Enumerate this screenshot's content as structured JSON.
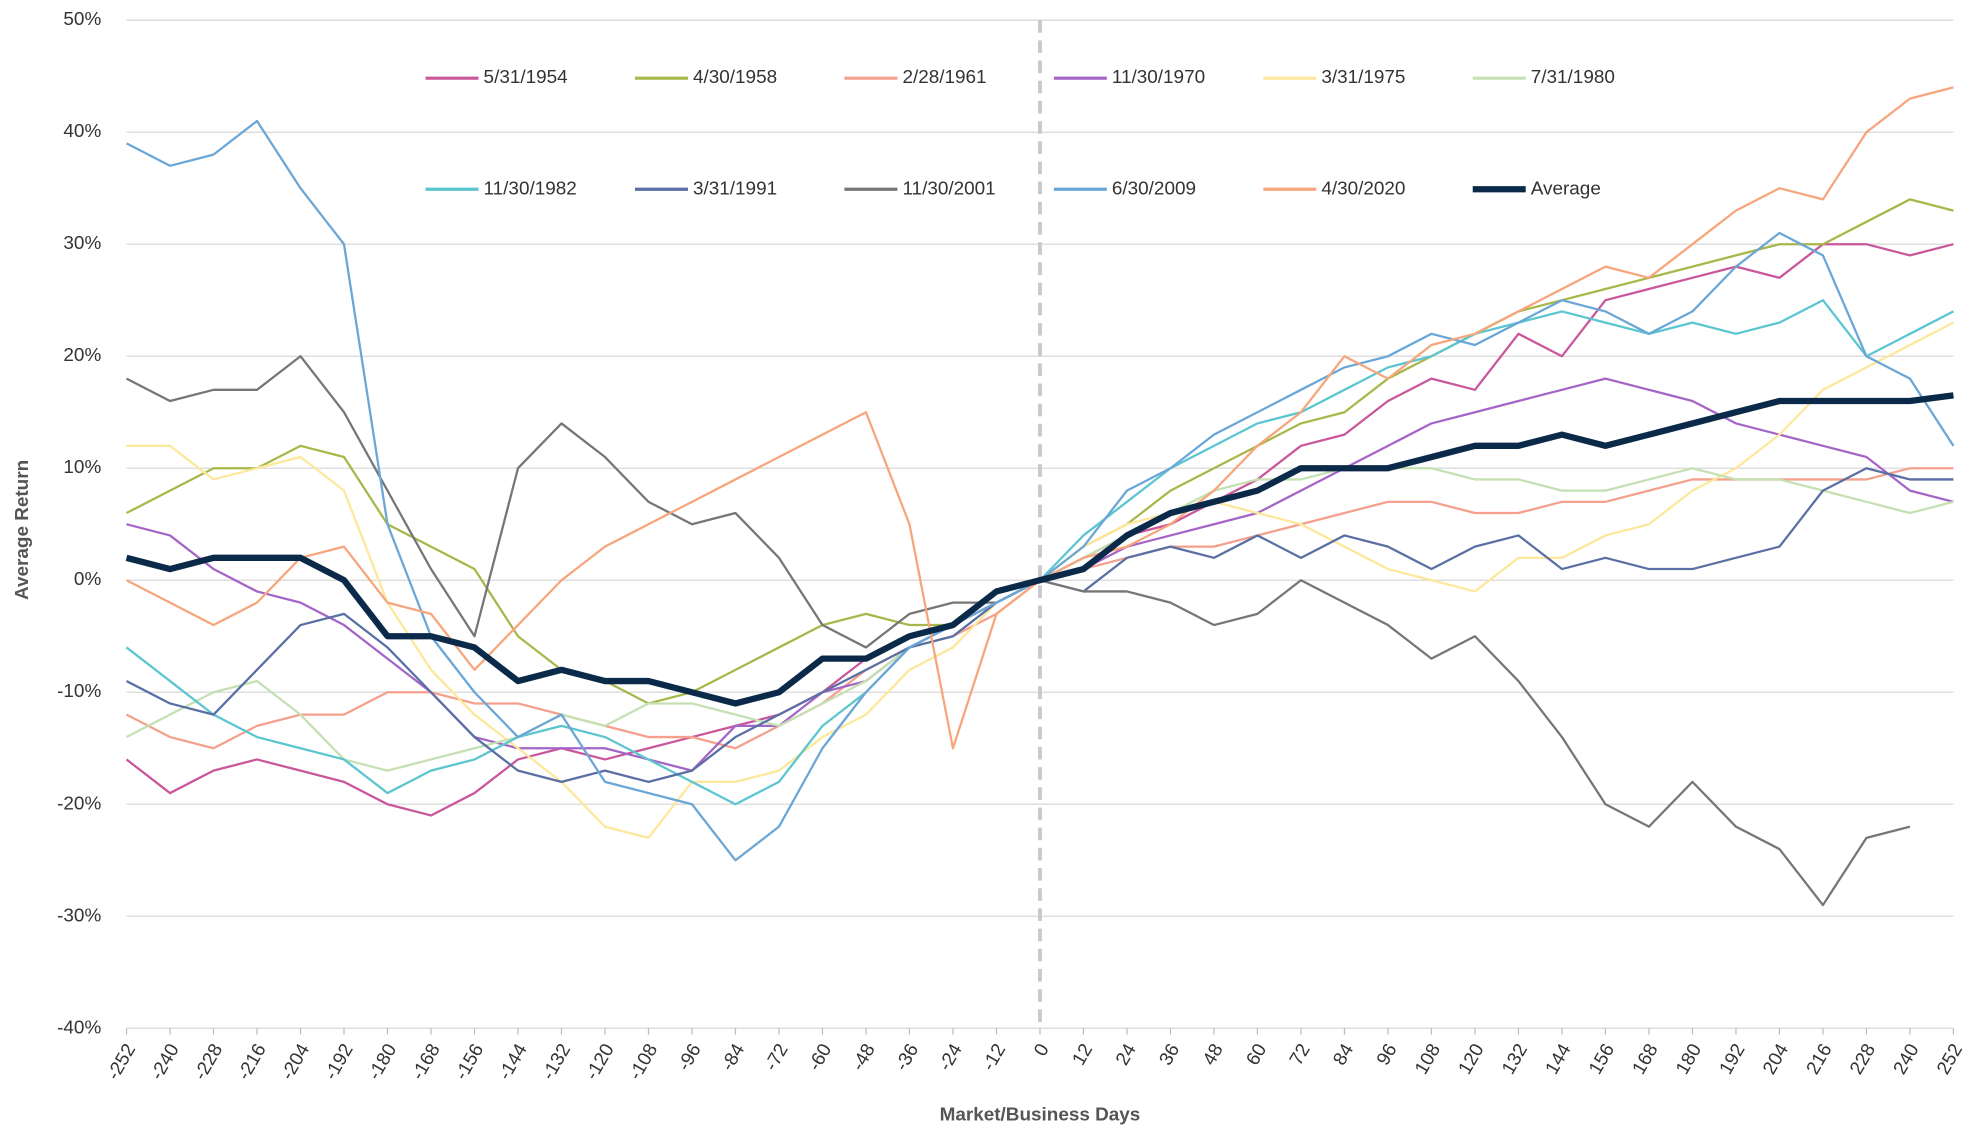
{
  "chart_data": {
    "type": "line",
    "y_label": "Average Return",
    "x_label": "Market/Business Days",
    "xlim": [
      -252,
      252
    ],
    "ylim": [
      -40,
      50
    ],
    "xticks": [
      -252,
      -240,
      -228,
      -216,
      -204,
      -192,
      -180,
      -168,
      -156,
      -144,
      -132,
      -120,
      -108,
      -96,
      -84,
      -72,
      -60,
      -48,
      -36,
      -24,
      -12,
      0,
      12,
      24,
      36,
      48,
      60,
      72,
      84,
      96,
      108,
      120,
      132,
      144,
      156,
      168,
      180,
      192,
      204,
      216,
      228,
      240,
      252
    ],
    "yticks": [
      {
        "value": -40,
        "label": "-40%"
      },
      {
        "value": -30,
        "label": "-30%"
      },
      {
        "value": -20,
        "label": "-20%"
      },
      {
        "value": -10,
        "label": "-10%"
      },
      {
        "value": 0,
        "label": "0%"
      },
      {
        "value": 10,
        "label": "10%"
      },
      {
        "value": 20,
        "label": "20%"
      },
      {
        "value": 30,
        "label": "30%"
      },
      {
        "value": 40,
        "label": "40%"
      },
      {
        "value": 50,
        "label": "50%"
      }
    ],
    "grid": true,
    "x": [
      -252,
      -240,
      -228,
      -216,
      -204,
      -192,
      -180,
      -168,
      -156,
      -144,
      -132,
      -120,
      -108,
      -96,
      -84,
      -72,
      -60,
      -48,
      -36,
      -24,
      -12,
      0,
      12,
      24,
      36,
      48,
      60,
      72,
      84,
      96,
      108,
      120,
      132,
      144,
      156,
      168,
      180,
      192,
      204,
      216,
      228,
      240,
      252
    ],
    "series": [
      {
        "name": "5/31/1954",
        "color": "#c9579b",
        "values": [
          -16,
          -19,
          -17,
          -16,
          -17,
          -18,
          -20,
          -21,
          -19,
          -16,
          -15,
          -16,
          -15,
          -14,
          -13,
          -12,
          -10,
          -7,
          -5,
          -4,
          -2,
          0,
          2,
          4,
          5,
          7,
          9,
          12,
          13,
          16,
          18,
          17,
          22,
          20,
          25,
          26,
          27,
          28,
          27,
          30,
          30,
          29,
          30
        ]
      },
      {
        "name": "4/30/1958",
        "color": "#a8b74a",
        "values": [
          6,
          8,
          10,
          10,
          12,
          11,
          5,
          3,
          1,
          -5,
          -8,
          -9,
          -11,
          -10,
          -8,
          -6,
          -4,
          -3,
          -4,
          -4,
          -1,
          0,
          3,
          5,
          8,
          10,
          12,
          14,
          15,
          18,
          20,
          22,
          24,
          25,
          26,
          27,
          28,
          29,
          30,
          30,
          32,
          34,
          33
        ]
      },
      {
        "name": "2/28/1961",
        "color": "#f4a08c",
        "values": [
          -12,
          -14,
          -15,
          -13,
          -12,
          -12,
          -10,
          -10,
          -11,
          -11,
          -12,
          -13,
          -14,
          -14,
          -15,
          -13,
          -11,
          -8,
          -6,
          -5,
          -3,
          0,
          1,
          2,
          3,
          3,
          4,
          5,
          6,
          7,
          7,
          6,
          6,
          7,
          7,
          8,
          9,
          9,
          9,
          9,
          9,
          10,
          10
        ]
      },
      {
        "name": "11/30/1970",
        "color": "#a565c7",
        "values": [
          5,
          4,
          1,
          -1,
          -2,
          -4,
          -7,
          -10,
          -14,
          -15,
          -15,
          -15,
          -16,
          -17,
          -13,
          -13,
          -10,
          -9,
          -6,
          -4,
          -2,
          0,
          1,
          3,
          4,
          5,
          6,
          8,
          10,
          12,
          14,
          15,
          16,
          17,
          18,
          17,
          16,
          14,
          13,
          12,
          11,
          8,
          7
        ]
      },
      {
        "name": "3/31/1975",
        "color": "#fde79a",
        "values": [
          12,
          12,
          9,
          10,
          11,
          8,
          -2,
          -8,
          -12,
          -15,
          -18,
          -22,
          -23,
          -18,
          -18,
          -17,
          -14,
          -12,
          -8,
          -6,
          -2,
          0,
          3,
          5,
          6,
          7,
          6,
          5,
          3,
          1,
          0,
          -1,
          2,
          2,
          4,
          5,
          8,
          10,
          13,
          17,
          19,
          21,
          23
        ]
      },
      {
        "name": "7/31/1980",
        "color": "#c5e0b3",
        "values": [
          -14,
          -12,
          -10,
          -9,
          -12,
          -16,
          -17,
          -16,
          -15,
          -14,
          -12,
          -13,
          -11,
          -11,
          -12,
          -13,
          -11,
          -9,
          -6,
          -5,
          -2,
          0,
          2,
          4,
          6,
          8,
          9,
          9,
          10,
          10,
          10,
          9,
          9,
          8,
          8,
          9,
          10,
          9,
          9,
          8,
          7,
          6,
          7
        ]
      },
      {
        "name": "11/30/1982",
        "color": "#5bc5d0",
        "values": [
          -6,
          -9,
          -12,
          -14,
          -15,
          -16,
          -19,
          -17,
          -16,
          -14,
          -13,
          -14,
          -16,
          -18,
          -20,
          -18,
          -13,
          -10,
          -6,
          -4,
          -2,
          0,
          4,
          7,
          10,
          12,
          14,
          15,
          17,
          19,
          20,
          22,
          23,
          24,
          23,
          22,
          23,
          22,
          23,
          25,
          20,
          22,
          24
        ]
      },
      {
        "name": "3/31/1991",
        "color": "#5a6fa3",
        "values": [
          -9,
          -11,
          -12,
          -8,
          -4,
          -3,
          -6,
          -10,
          -14,
          -17,
          -18,
          -17,
          -18,
          -17,
          -14,
          -12,
          -10,
          -8,
          -6,
          -5,
          -2,
          0,
          -1,
          2,
          3,
          2,
          4,
          2,
          4,
          3,
          1,
          3,
          4,
          1,
          2,
          1,
          1,
          2,
          3,
          8,
          10,
          9,
          9
        ]
      },
      {
        "name": "11/30/2001",
        "color": "#767676",
        "values": [
          18,
          16,
          17,
          17,
          20,
          15,
          8,
          1,
          -5,
          10,
          14,
          11,
          7,
          5,
          6,
          2,
          -4,
          -6,
          -3,
          -2,
          -2,
          0,
          -1,
          -1,
          -2,
          -4,
          -3,
          0,
          -2,
          -4,
          -7,
          -5,
          -9,
          -14,
          -20,
          -22,
          -18,
          -22,
          -24,
          -29,
          -23,
          -22,
          null
        ]
      },
      {
        "name": "6/30/2009",
        "color": "#6aa6d6",
        "values": [
          39,
          37,
          38,
          41,
          35,
          30,
          5,
          -5,
          -10,
          -14,
          -12,
          -18,
          -19,
          -20,
          -25,
          -22,
          -15,
          -10,
          -6,
          -4,
          -2,
          0,
          3,
          8,
          10,
          13,
          15,
          17,
          19,
          20,
          22,
          21,
          23,
          25,
          24,
          22,
          24,
          28,
          31,
          29,
          20,
          18,
          12
        ]
      },
      {
        "name": "4/30/2020",
        "color": "#f7a57c",
        "values": [
          0,
          -2,
          -4,
          -2,
          2,
          3,
          -2,
          -3,
          -8,
          -4,
          0,
          3,
          5,
          7,
          9,
          11,
          13,
          15,
          5,
          -15,
          -3,
          0,
          2,
          3,
          5,
          8,
          12,
          15,
          20,
          18,
          21,
          22,
          24,
          26,
          28,
          27,
          30,
          33,
          35,
          34,
          40,
          43,
          44
        ]
      },
      {
        "name": "Average",
        "color": "#0b2a4a",
        "values": [
          2,
          1,
          2,
          2,
          2,
          0,
          -5,
          -5,
          -6,
          -9,
          -8,
          -9,
          -9,
          -10,
          -11,
          -10,
          -7,
          -7,
          -5,
          -4,
          -1,
          0,
          1,
          4,
          6,
          7,
          8,
          10,
          10,
          10,
          11,
          12,
          12,
          13,
          12,
          13,
          14,
          15,
          16,
          16,
          16,
          16,
          16.5
        ]
      }
    ]
  }
}
